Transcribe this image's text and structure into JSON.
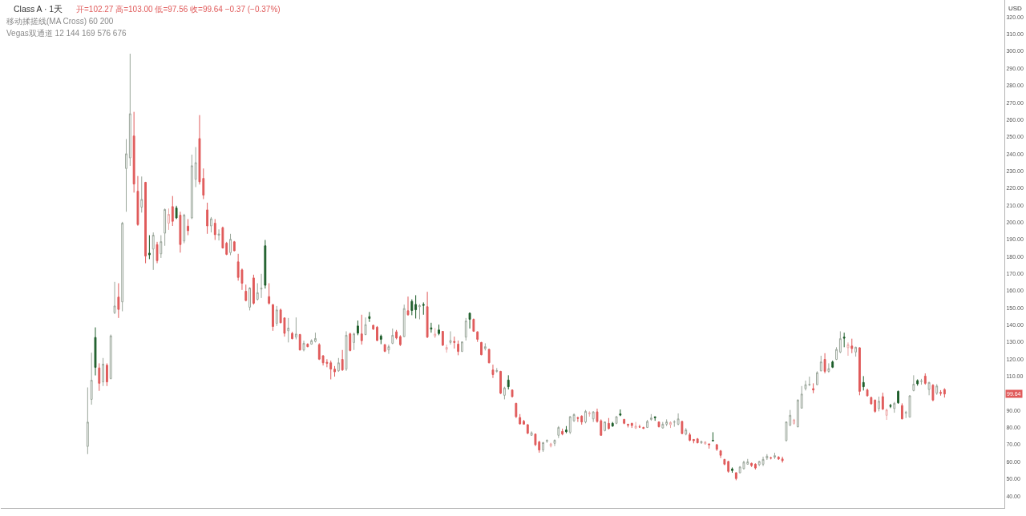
{
  "chart_data": {
    "type": "candlestick",
    "title": "Class A · 1天",
    "subtitle": "开=102.27 高=103.00 低=97.56 收=99.64 −0.37 (−0.37%)",
    "ylabel": "USD",
    "annotations": [
      "移动揉搓线(MA Cross) 60 200",
      "Vegas双通道 12 144 169 576 676",
      {
        "text": "99.64",
        "y": 99.64
      }
    ],
    "categories": [
      null,
      null,
      null,
      null,
      null,
      null,
      null,
      null,
      null,
      null,
      null,
      null,
      null,
      null,
      null,
      null,
      null,
      null,
      null,
      null,
      null,
      null,
      null,
      null,
      null,
      null,
      null,
      null,
      null,
      null,
      null,
      null,
      null,
      null,
      null,
      null,
      null,
      null,
      null,
      null,
      null,
      null,
      null,
      null,
      null,
      null,
      null,
      null,
      null,
      null,
      null,
      null,
      null,
      null,
      null,
      null,
      null,
      null,
      null,
      null,
      null,
      null,
      null,
      null,
      null,
      null,
      null,
      null,
      null,
      null,
      null,
      null,
      null,
      null,
      null,
      null,
      null,
      null,
      null,
      null,
      null,
      null,
      null,
      null,
      null,
      null,
      null,
      null,
      null,
      null,
      null,
      null,
      null,
      null,
      null,
      null,
      null,
      null,
      null,
      null,
      null,
      null,
      null,
      null,
      null,
      null,
      null,
      null,
      null,
      null,
      null,
      null,
      null,
      null,
      null,
      null,
      null,
      null,
      null,
      null,
      null,
      null,
      null,
      null,
      null,
      null,
      null,
      null,
      null,
      null,
      null,
      null,
      null,
      null,
      null,
      null,
      null,
      null,
      null,
      null,
      null,
      null,
      null,
      null,
      null,
      null,
      null,
      null,
      null,
      null,
      null,
      null,
      null,
      null,
      null,
      null,
      null,
      null,
      null,
      null,
      null,
      null,
      null,
      null,
      null,
      null,
      null,
      null,
      null,
      null,
      null,
      null,
      null,
      null,
      null,
      null,
      null,
      null,
      null,
      null,
      null,
      null,
      null,
      null,
      null,
      null,
      null,
      null,
      null,
      null,
      null,
      null,
      null,
      null,
      null,
      null,
      null,
      null,
      null,
      null,
      null,
      null,
      null,
      null,
      null,
      null,
      null,
      null,
      null,
      null,
      null,
      null,
      null,
      null,
      null,
      null,
      null,
      null,
      null,
      null,
      null,
      null,
      null,
      null,
      null,
      null,
      null,
      null,
      null,
      null,
      null,
      null,
      null,
      null,
      null,
      null,
      null,
      null,
      null,
      null,
      null,
      null,
      null,
      null,
      null,
      null,
      null,
      null,
      null,
      null,
      null,
      null,
      null,
      null,
      null,
      null,
      null,
      null,
      null,
      null
    ],
    "ohlc": [
      null,
      null,
      null,
      null,
      null,
      null,
      null,
      null,
      null,
      null,
      null,
      null,
      null,
      null,
      null,
      null,
      null,
      null,
      null,
      null,
      null,
      null,
      [
        69.0,
        103.5,
        64.5,
        83.2
      ],
      [
        96.5,
        123.8,
        93.4,
        107.7
      ],
      [
        132.7,
        138.6,
        110.5,
        115.2
      ],
      [
        114.9,
        117.6,
        101.5,
        105.9
      ],
      [
        106.7,
        120.7,
        104.3,
        117.1
      ],
      [
        116.5,
        117.6,
        104.3,
        106.7
      ],
      [
        108.7,
        134.4,
        108.2,
        133.6
      ],
      [
        147.2,
        165.2,
        146.4,
        151.1
      ],
      [
        156.3,
        164.4,
        144.1,
        149.1
      ],
      [
        153.5,
        200.3,
        148.0,
        199.5
      ],
      [
        231.5,
        248.7,
        206.2,
        240.1
      ],
      [
        237.7,
        298.6,
        233.0,
        263.5
      ],
      [
        250.5,
        264.6,
        217.4,
        222.4
      ],
      [
        218.2,
        227.1,
        198.0,
        198.7
      ],
      [
        208.9,
        226.8,
        205.7,
        213.4
      ],
      [
        223.4,
        223.7,
        176.1,
        180.3
      ],
      [
        182.0,
        192.5,
        178.5,
        181.0
      ],
      [
        184.4,
        194.1,
        172.2,
        192.5
      ],
      [
        187.0,
        188.6,
        176.1,
        177.6
      ],
      [
        181.6,
        192.5,
        179.2,
        188.7
      ],
      [
        193.7,
        208.1,
        186.3,
        207.5
      ],
      [
        199.5,
        208.1,
        195.6,
        204.7
      ],
      [
        209.2,
        215.4,
        197.9,
        200.6
      ],
      [
        208.4,
        209.7,
        201.9,
        202.6
      ],
      [
        204.2,
        206.2,
        182.3,
        187.0
      ],
      [
        189.1,
        205.0,
        187.8,
        204.2
      ],
      [
        197.8,
        201.9,
        192.5,
        195.1
      ],
      [
        202.6,
        239.6,
        201.9,
        233.1
      ],
      [
        225.2,
        244.0,
        220.6,
        234.9
      ],
      [
        249.0,
        262.7,
        222.1,
        223.7
      ],
      [
        225.7,
        231.5,
        213.6,
        215.9
      ],
      [
        207.3,
        211.5,
        193.3,
        197.9
      ],
      [
        197.9,
        203.1,
        194.1,
        202.1
      ],
      [
        199.5,
        201.9,
        189.7,
        192.8
      ],
      [
        192.5,
        195.9,
        189.4,
        193.2
      ],
      [
        196.9,
        197.5,
        184.7,
        185.0
      ],
      [
        187.8,
        188.6,
        180.8,
        181.3
      ],
      [
        182.3,
        193.3,
        180.8,
        190.1
      ],
      [
        188.6,
        189.1,
        183.1,
        183.4
      ],
      [
        176.9,
        181.6,
        165.9,
        167.8
      ],
      [
        172.2,
        173.0,
        160.5,
        164.4
      ],
      [
        159.7,
        163.6,
        153.8,
        154.3
      ],
      [
        150.4,
        162.1,
        148.5,
        161.6
      ],
      [
        167.5,
        169.4,
        151.9,
        152.7
      ],
      [
        155.0,
        164.4,
        154.3,
        158.9
      ],
      [
        161.0,
        169.9,
        155.8,
        161.5
      ],
      [
        186.3,
        189.7,
        161.3,
        163.2
      ],
      [
        156.6,
        164.4,
        151.9,
        152.7
      ],
      [
        151.9,
        152.2,
        136.6,
        139.1
      ],
      [
        141.0,
        151.1,
        139.4,
        148.8
      ],
      [
        148.8,
        149.6,
        141.0,
        141.3
      ],
      [
        144.1,
        144.4,
        133.2,
        135.1
      ],
      [
        136.6,
        144.1,
        129.8,
        138.2
      ],
      [
        135.1,
        136.0,
        131.6,
        132.0
      ],
      [
        132.9,
        144.4,
        131.6,
        134.7
      ],
      [
        134.4,
        134.8,
        125.1,
        125.4
      ],
      [
        125.4,
        130.8,
        124.6,
        129.3
      ],
      [
        128.8,
        129.3,
        127.0,
        127.3
      ],
      [
        128.8,
        131.6,
        128.5,
        130.8
      ],
      [
        130.4,
        135.5,
        129.8,
        132.1
      ],
      [
        128.5,
        129.3,
        119.5,
        120.0
      ],
      [
        122.0,
        122.3,
        116.3,
        117.9
      ],
      [
        118.2,
        120.0,
        115.3,
        117.6
      ],
      [
        117.9,
        119.2,
        108.2,
        114.2
      ],
      [
        114.2,
        116.0,
        109.8,
        112.6
      ],
      [
        113.2,
        120.7,
        112.6,
        117.9
      ],
      [
        119.9,
        125.4,
        113.2,
        113.7
      ],
      [
        114.2,
        136.3,
        113.2,
        134.0
      ],
      [
        134.8,
        135.5,
        124.6,
        125.1
      ],
      [
        129.8,
        135.5,
        125.4,
        134.8
      ],
      [
        139.4,
        142.6,
        134.0,
        135.2
      ],
      [
        134.8,
        146.0,
        128.5,
        130.8
      ],
      [
        134.4,
        144.4,
        134.0,
        140.2
      ],
      [
        144.9,
        147.6,
        141.8,
        143.8
      ],
      [
        139.8,
        140.2,
        137.1,
        137.6
      ],
      [
        138.7,
        139.4,
        130.6,
        130.9
      ],
      [
        133.5,
        134.4,
        128.8,
        131.6
      ],
      [
        128.5,
        128.8,
        124.1,
        124.6
      ],
      [
        125.4,
        128.5,
        123.1,
        127.3
      ],
      [
        129.3,
        137.9,
        128.8,
        134.0
      ],
      [
        136.0,
        137.1,
        131.6,
        132.4
      ],
      [
        133.2,
        134.0,
        127.7,
        128.5
      ],
      [
        133.2,
        151.9,
        132.9,
        149.6
      ],
      [
        148.3,
        156.6,
        145.4,
        146.0
      ],
      [
        153.8,
        155.0,
        145.7,
        148.5
      ],
      [
        152.0,
        157.4,
        143.8,
        148.9
      ],
      [
        150.7,
        152.2,
        143.3,
        151.3
      ],
      [
        152.0,
        153.2,
        146.0,
        151.5
      ],
      [
        150.7,
        159.4,
        132.4,
        132.9
      ],
      [
        138.3,
        141.3,
        135.5,
        137.6
      ],
      [
        133.5,
        138.2,
        132.4,
        134.7
      ],
      [
        137.1,
        140.2,
        134.0,
        135.0
      ],
      [
        136.3,
        136.5,
        127.7,
        128.2
      ],
      [
        125.7,
        128.5,
        123.8,
        126.9
      ],
      [
        129.8,
        136.3,
        128.5,
        130.9
      ],
      [
        130.4,
        133.2,
        126.2,
        129.8
      ],
      [
        128.8,
        130.9,
        122.3,
        124.5
      ],
      [
        124.6,
        130.4,
        124.2,
        130.1
      ],
      [
        132.9,
        144.1,
        130.9,
        142.3
      ],
      [
        146.9,
        147.2,
        137.9,
        143.3
      ],
      [
        143.3,
        143.8,
        136.0,
        136.3
      ],
      [
        136.0,
        136.3,
        130.1,
        131.6
      ],
      [
        129.8,
        130.1,
        122.3,
        122.6
      ],
      [
        126.2,
        129.3,
        125.1,
        127.3
      ],
      [
        125.7,
        126.2,
        117.6,
        117.9
      ],
      [
        113.7,
        116.8,
        109.0,
        111.0
      ],
      [
        112.9,
        114.8,
        112.1,
        113.3
      ],
      [
        112.9,
        113.2,
        99.6,
        100.1
      ],
      [
        98.9,
        103.9,
        96.5,
        103.2
      ],
      [
        107.8,
        110.6,
        102.3,
        103.9
      ],
      [
        102.0,
        102.3,
        97.6,
        98.1
      ],
      [
        94.2,
        94.5,
        85.6,
        86.4
      ],
      [
        85.9,
        87.9,
        81.7,
        82.2
      ],
      [
        83.7,
        84.5,
        81.7,
        82.0
      ],
      [
        81.7,
        82.0,
        76.2,
        76.7
      ],
      [
        75.5,
        77.8,
        75.2,
        77.0
      ],
      [
        76.2,
        76.5,
        69.2,
        70.0
      ],
      [
        71.6,
        72.3,
        65.3,
        66.9
      ],
      [
        66.9,
        71.6,
        65.8,
        71.2
      ],
      [
        72.0,
        73.1,
        71.1,
        72.5
      ],
      [
        69.2,
        71.1,
        68.4,
        70.5
      ],
      [
        70.8,
        73.1,
        69.2,
        72.6
      ],
      [
        75.5,
        80.9,
        73.9,
        80.1
      ],
      [
        77.8,
        79.4,
        75.5,
        76.2
      ],
      [
        78.6,
        80.9,
        76.7,
        77.6
      ],
      [
        77.3,
        86.7,
        76.2,
        86.4
      ],
      [
        84.0,
        88.3,
        83.3,
        87.6
      ],
      [
        85.8,
        86.4,
        83.3,
        85.4
      ],
      [
        86.7,
        87.2,
        81.7,
        83.3
      ],
      [
        83.3,
        90.3,
        82.5,
        89.5
      ],
      [
        88.0,
        89.5,
        86.4,
        88.6
      ],
      [
        85.1,
        89.5,
        83.3,
        89.2
      ],
      [
        89.2,
        91.1,
        82.9,
        83.6
      ],
      [
        84.0,
        84.8,
        75.2,
        75.5
      ],
      [
        78.3,
        83.6,
        77.8,
        83.3
      ],
      [
        82.5,
        85.6,
        78.9,
        79.4
      ],
      [
        82.5,
        83.3,
        80.5,
        80.9
      ],
      [
        82.5,
        86.7,
        82.0,
        86.4
      ],
      [
        88.0,
        90.6,
        86.7,
        87.3
      ],
      [
        84.8,
        85.1,
        82.0,
        82.5
      ],
      [
        82.0,
        82.0,
        80.1,
        81.4
      ],
      [
        82.5,
        82.8,
        79.8,
        81.2
      ],
      [
        79.7,
        83.3,
        79.2,
        80.9
      ],
      [
        80.5,
        81.7,
        79.8,
        80.3
      ],
      [
        80.1,
        80.5,
        79.2,
        79.5
      ],
      [
        80.1,
        84.5,
        79.8,
        83.6
      ],
      [
        84.8,
        87.9,
        84.0,
        85.6
      ],
      [
        86.3,
        86.5,
        84.0,
        85.8
      ],
      [
        83.3,
        83.6,
        80.1,
        80.5
      ],
      [
        79.8,
        83.3,
        79.4,
        82.0
      ],
      [
        82.0,
        84.8,
        80.9,
        83.3
      ],
      [
        81.7,
        83.6,
        79.8,
        83.0
      ],
      [
        83.2,
        84.3,
        80.5,
        83.3
      ],
      [
        82.0,
        88.3,
        81.4,
        85.1
      ],
      [
        83.6,
        84.0,
        76.2,
        76.5
      ],
      [
        76.2,
        79.7,
        75.5,
        78.6
      ],
      [
        75.8,
        77.0,
        72.0,
        72.6
      ],
      [
        73.1,
        73.1,
        70.8,
        72.3
      ],
      [
        73.4,
        73.9,
        70.8,
        71.1
      ],
      [
        71.1,
        72.3,
        70.5,
        71.9
      ],
      [
        70.5,
        72.0,
        70.0,
        71.6
      ],
      [
        70.5,
        70.5,
        67.7,
        70.0
      ],
      [
        72.5,
        77.3,
        72.0,
        72.3
      ],
      [
        70.0,
        70.5,
        66.4,
        67.3
      ],
      [
        66.4,
        66.9,
        62.2,
        63.8
      ],
      [
        61.4,
        61.7,
        58.0,
        58.6
      ],
      [
        60.2,
        60.6,
        53.6,
        54.4
      ],
      [
        55.8,
        56.7,
        53.6,
        54.9
      ],
      [
        53.6,
        53.9,
        49.2,
        50.2
      ],
      [
        53.6,
        57.5,
        53.3,
        57.0
      ],
      [
        56.0,
        60.6,
        55.5,
        59.8
      ],
      [
        58.6,
        61.7,
        58.3,
        60.0
      ],
      [
        59.1,
        59.5,
        57.0,
        57.8
      ],
      [
        58.6,
        59.1,
        55.5,
        56.4
      ],
      [
        58.3,
        60.6,
        57.5,
        60.2
      ],
      [
        58.6,
        63.0,
        57.5,
        61.4
      ],
      [
        62.2,
        64.5,
        61.1,
        63.3
      ],
      [
        62.3,
        63.0,
        61.4,
        62.2
      ],
      [
        62.7,
        65.3,
        61.7,
        63.6
      ],
      [
        62.7,
        63.3,
        61.1,
        61.7
      ],
      [
        61.7,
        63.0,
        59.5,
        60.6
      ],
      [
        72.5,
        83.6,
        71.8,
        83.3
      ],
      [
        81.4,
        90.3,
        80.9,
        87.2
      ],
      [
        82.5,
        85.1,
        81.7,
        84.5
      ],
      [
        80.5,
        96.5,
        80.1,
        96.1
      ],
      [
        91.4,
        104.3,
        91.1,
        99.6
      ],
      [
        102.8,
        107.5,
        101.7,
        105.1
      ],
      [
        105.0,
        109.8,
        104.3,
        105.3
      ],
      [
        102.8,
        105.9,
        100.1,
        102.0
      ],
      [
        105.1,
        112.9,
        104.8,
        112.1
      ],
      [
        113.2,
        122.0,
        112.9,
        118.4
      ],
      [
        119.9,
        123.5,
        111.7,
        112.9
      ],
      [
        112.9,
        117.6,
        112.1,
        114.5
      ],
      [
        118.4,
        119.2,
        114.8,
        115.3
      ],
      [
        119.9,
        127.0,
        119.5,
        125.7
      ],
      [
        124.2,
        136.3,
        123.5,
        132.0
      ],
      [
        132.9,
        135.5,
        127.0,
        132.3
      ],
      [
        126.7,
        129.8,
        122.0,
        128.5
      ],
      [
        127.7,
        132.0,
        123.5,
        126.2
      ],
      [
        124.2,
        127.3,
        121.5,
        127.0
      ],
      [
        126.7,
        127.0,
        98.9,
        101.2
      ],
      [
        106.4,
        110.1,
        101.7,
        103.9
      ],
      [
        102.0,
        102.8,
        98.1,
        98.6
      ],
      [
        97.6,
        98.1,
        93.4,
        93.9
      ],
      [
        96.1,
        96.4,
        88.7,
        89.5
      ],
      [
        91.1,
        98.1,
        89.5,
        95.4
      ],
      [
        98.1,
        100.4,
        90.3,
        90.8
      ],
      [
        87.2,
        91.1,
        84.5,
        90.3
      ],
      [
        93.0,
        93.9,
        91.4,
        92.4
      ],
      [
        91.1,
        95.0,
        88.7,
        94.2
      ],
      [
        101.2,
        101.7,
        93.9,
        94.5
      ],
      [
        92.9,
        94.2,
        84.8,
        85.1
      ],
      [
        88.5,
        89.8,
        85.6,
        88.8
      ],
      [
        86.1,
        98.9,
        86.1,
        98.6
      ],
      [
        101.7,
        110.6,
        101.2,
        105.4
      ],
      [
        107.5,
        108.2,
        104.5,
        105.6
      ],
      [
        107.0,
        108.5,
        105.1,
        107.2
      ],
      [
        110.1,
        111.7,
        105.1,
        105.9
      ],
      [
        102.3,
        106.7,
        98.9,
        106.4
      ],
      [
        104.8,
        105.4,
        95.4,
        96.1
      ],
      [
        100.1,
        105.4,
        99.2,
        104.3
      ],
      [
        100.6,
        101.9,
        98.7,
        100.01
      ],
      [
        102.27,
        103.0,
        97.56,
        99.64
      ],
      null,
      null,
      null,
      null,
      null,
      null,
      null,
      null,
      null,
      null,
      null,
      null,
      null,
      null,
      null
    ],
    "colors": [
      null,
      null,
      null,
      null,
      null,
      null,
      null,
      null,
      null,
      null,
      null,
      null,
      null,
      null,
      null,
      null,
      null,
      null,
      null,
      null,
      null,
      null,
      "#9aa69a",
      "#9aa69a",
      "#1e5e2b",
      "#e05a5a",
      "#9aa69a",
      "#e05a5a",
      "#9aa69a",
      "#9aa69a",
      "#e05a5a",
      "#9aa69a",
      "#9aa69a",
      "#9aa69a",
      "#e05a5a",
      "#e05a5a",
      "#9aa69a",
      "#e05a5a",
      "#1e5e2b",
      "#9aa69a",
      "#e05a5a",
      "#9aa69a",
      "#9aa69a",
      "#eca3a3",
      "#e05a5a",
      "#1e5e2b",
      "#e05a5a",
      "#9aa69a",
      "#e05a5a",
      "#9aa69a",
      "#9aa69a",
      "#e05a5a",
      "#e05a5a",
      "#e05a5a",
      "#9aa69a",
      "#e05a5a",
      "#9aa69a",
      "#e05a5a",
      "#e05a5a",
      "#9aa69a",
      "#e05a5a",
      "#e05a5a",
      "#e05a5a",
      "#e05a5a",
      "#9aa69a",
      "#e05a5a",
      "#9aa69a",
      "#9aa69a",
      "#1e5e2b",
      "#e05a5a",
      "#e05a5a",
      "#9aa69a",
      "#e05a5a",
      "#e05a5a",
      "#9aa69a",
      "#e05a5a",
      "#9aa69a",
      "#e05a5a",
      "#9aa69a",
      "#e05a5a",
      "#9aa69a",
      "#9aa69a",
      "#e05a5a",
      "#e05a5a",
      "#e05a5a",
      "#e05a5a",
      "#e05a5a",
      "#9aa69a",
      "#e05a5a",
      "#9aa69a",
      "#e05a5a",
      "#9aa69a",
      "#1e5e2b",
      "#e05a5a",
      "#9aa69a",
      "#1e5e2b",
      "#e05a5a",
      "#e05a5a",
      "#1e5e2b",
      "#e05a5a",
      "#9aa69a",
      "#9aa69a",
      "#e05a5a",
      "#e05a5a",
      "#9aa69a",
      "#e05a5a",
      "#1e5e2b",
      "#1e5e2b",
      "#9aa69a",
      "#1e5e2b",
      "#e05a5a",
      "#1e5e2b",
      "#eca3a3",
      "#1e5e2b",
      "#e05a5a",
      "#eca3a3",
      "#9aa69a",
      "#e05a5a",
      "#e05a5a",
      "#9aa69a",
      "#9aa69a",
      "#1e5e2b",
      "#e05a5a",
      "#e05a5a",
      "#e05a5a",
      "#9aa69a",
      "#e05a5a",
      "#e05a5a",
      "#9aa69a",
      "#e05a5a",
      "#9aa69a",
      "#1e5e2b",
      "#e05a5a",
      "#e05a5a",
      "#e05a5a",
      "#e05a5a",
      "#e05a5a",
      "#9aa69a",
      "#e05a5a",
      "#e05a5a",
      "#9aa69a",
      "#9aa69a",
      "#eca3a3",
      "#9aa69a",
      "#9aa69a",
      "#e05a5a",
      "#1e5e2b",
      "#9aa69a",
      "#9aa69a",
      "#e05a5a",
      "#e05a5a",
      "#9aa69a",
      "#eca3a3",
      "#9aa69a",
      "#e05a5a",
      "#e05a5a",
      "#9aa69a",
      "#e05a5a",
      "#1e5e2b",
      "#9aa69a",
      "#1e5e2b",
      "#e05a5a",
      "#e05a5a",
      "#e05a5a",
      "#eca3a3",
      "#e05a5a",
      "#e05a5a",
      "#9aa69a",
      "#9aa69a",
      "#1e5e2b",
      "#e05a5a",
      "#9aa69a",
      "#9aa69a",
      "#eca3a3",
      "#9aa69a",
      "#9aa69a",
      "#e05a5a",
      "#9aa69a",
      "#e05a5a",
      "#e05a5a",
      "#e05a5a",
      "#9aa69a",
      "#eca3a3",
      "#e05a5a",
      "#1e5e2b",
      "#e05a5a",
      "#e05a5a",
      "#e05a5a",
      "#e05a5a",
      "#1e5e2b",
      "#e05a5a",
      "#9aa69a",
      "#9aa69a",
      "#9aa69a",
      "#e05a5a",
      "#e05a5a",
      "#9aa69a",
      "#9aa69a",
      "#9aa69a",
      "#e05a5a",
      "#9aa69a",
      "#e05a5a",
      "#e05a5a",
      "#9aa69a",
      "#9aa69a",
      "#eca3a3",
      "#9aa69a",
      "#9aa69a",
      "#9aa69a",
      "#9aa69a",
      "#e05a5a",
      "#9aa69a",
      "#9aa69a",
      "#e05a5a",
      "#9aa69a",
      "#1e5e2b",
      "#9aa69a",
      "#9aa69a",
      "#1e5e2b",
      "#eca3a3",
      "#e05a5a",
      "#9aa69a",
      "#e05a5a",
      "#1e5e2b",
      "#e05a5a",
      "#e05a5a",
      "#e05a5a",
      "#9aa69a",
      "#e05a5a",
      "#eca3a3",
      "#1e5e2b",
      "#9aa69a",
      "#1e5e2b",
      "#e05a5a",
      "#9aa69a",
      "#9aa69a",
      "#9aa69a",
      "#1e5e2b",
      "#9aa69a",
      "#e05a5a",
      "#9aa69a",
      "#e05a5a",
      "#9aa69a",
      "#e05a5a",
      "#e05a5a",
      null,
      null,
      null,
      null,
      null,
      null,
      null,
      null,
      null,
      null,
      null,
      null,
      null,
      null,
      null
    ],
    "ylim": [
      33,
      330
    ],
    "yticks": [
      {
        "value": 40,
        "label": "40.00"
      },
      {
        "value": 50,
        "label": "50.00"
      },
      {
        "value": 60,
        "label": "60.00"
      },
      {
        "value": 70,
        "label": "70.00"
      },
      {
        "value": 80,
        "label": "80.00"
      },
      {
        "value": 90,
        "label": "90.00"
      },
      {
        "value": 110,
        "label": "110.00"
      },
      {
        "value": 120,
        "label": "120.00"
      },
      {
        "value": 130,
        "label": "130.00"
      },
      {
        "value": 140,
        "label": "140.00"
      },
      {
        "value": 150,
        "label": "150.00"
      },
      {
        "value": 160,
        "label": "160.00"
      },
      {
        "value": 170,
        "label": "170.00"
      },
      {
        "value": 180,
        "label": "180.00"
      },
      {
        "value": 190,
        "label": "190.00"
      },
      {
        "value": 200,
        "label": "200.00"
      },
      {
        "value": 210,
        "label": "210.00"
      },
      {
        "value": 220,
        "label": "220.00"
      },
      {
        "value": 230,
        "label": "230.00"
      },
      {
        "value": 240,
        "label": "240.00"
      },
      {
        "value": 250,
        "label": "250.00"
      },
      {
        "value": 260,
        "label": "260.00"
      },
      {
        "value": 270,
        "label": "270.00"
      },
      {
        "value": 280,
        "label": "280.00"
      },
      {
        "value": 290,
        "label": "290.00"
      },
      {
        "value": 300,
        "label": "300.00"
      },
      {
        "value": 310,
        "label": "310.00"
      },
      {
        "value": 320,
        "label": "320.00"
      }
    ],
    "tick_labels": "y"
  }
}
